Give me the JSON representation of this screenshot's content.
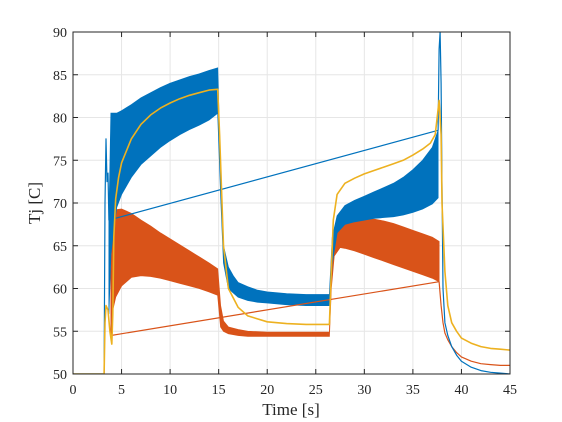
{
  "chart_data": {
    "type": "line",
    "title": "",
    "xlabel": "Time [s]",
    "ylabel": "Tj [C]",
    "xlim": [
      0,
      45
    ],
    "ylim": [
      50,
      90
    ],
    "xticks": [
      0,
      5,
      10,
      15,
      20,
      25,
      30,
      35,
      40,
      45
    ],
    "yticks": [
      50,
      55,
      60,
      65,
      70,
      75,
      80,
      85,
      90
    ],
    "grid": true,
    "colors": {
      "blue": "#0072BD",
      "orange": "#D95319",
      "yellow": "#EDB120",
      "axis": "#262626",
      "grid": "#e6e6e6"
    },
    "series": [
      {
        "color": "#EDB120",
        "style": "line",
        "x": [
          0,
          3.2,
          3.3,
          3.4,
          3.6,
          3.8,
          4.0,
          4.1,
          4.2,
          4.4,
          4.7,
          5.0,
          6.0,
          7.0,
          8.0,
          9.0,
          10.0,
          11.0,
          12.0,
          13.0,
          14.0,
          14.9,
          15.1,
          15.5,
          16.0,
          17.0,
          18.0,
          20.0,
          22.0,
          24.0,
          26.0,
          26.4,
          26.6,
          26.8,
          27.2,
          28.0,
          29.0,
          30.0,
          31.0,
          32.0,
          33.0,
          34.0,
          35.0,
          36.0,
          36.8,
          37.3,
          37.5,
          37.7,
          37.9,
          38.0,
          38.3,
          38.6,
          39.0,
          39.5,
          40.0,
          41.0,
          42.0,
          43.0,
          44.0,
          45.0
        ],
        "y": [
          50,
          50,
          56,
          58,
          57.5,
          55,
          53.5,
          57,
          66,
          70.5,
          73,
          74.7,
          77.5,
          79.2,
          80.3,
          81.1,
          81.7,
          82.2,
          82.6,
          82.9,
          83.2,
          83.3,
          78,
          65,
          60,
          57.8,
          56.8,
          56.1,
          55.9,
          55.8,
          55.8,
          55.8,
          62,
          68,
          71,
          72.3,
          72.9,
          73.4,
          73.8,
          74.2,
          74.6,
          75.0,
          75.6,
          76.3,
          77.0,
          78,
          80,
          82,
          78,
          70,
          62,
          58,
          56,
          55,
          54.2,
          53.6,
          53.2,
          53.0,
          52.9,
          52.8
        ]
      },
      {
        "color": "#0072BD",
        "style": "band",
        "x": [
          3.7,
          3.9,
          4.2,
          4.5,
          5.0,
          6.0,
          7.0,
          8.0,
          9.0,
          10.0,
          11.0,
          12.0,
          13.0,
          14.0,
          14.9,
          15.2,
          15.5,
          16.0,
          16.5,
          17.0,
          18.0,
          19.0,
          20.0,
          22.0,
          24.0,
          26.4,
          26.7,
          27.2,
          28.0,
          29.0,
          30.0,
          31.0,
          32.0,
          33.0,
          34.0,
          35.0,
          36.0,
          37.0,
          37.6
        ],
        "y_upper": [
          68,
          80.5,
          80.5,
          80.5,
          80.8,
          81.5,
          82.3,
          82.9,
          83.5,
          84.0,
          84.4,
          84.8,
          85.1,
          85.5,
          85.8,
          73,
          65,
          62.5,
          61.5,
          60.7,
          60.2,
          59.8,
          59.6,
          59.4,
          59.3,
          59.3,
          66,
          68.5,
          69.7,
          70.3,
          70.8,
          71.3,
          71.8,
          72.3,
          73.0,
          73.9,
          75.0,
          76.5,
          78.5
        ],
        "y_lower": [
          57,
          64,
          67,
          69.5,
          71,
          73,
          74.5,
          75.5,
          76.5,
          77.3,
          78.0,
          78.6,
          79.1,
          79.7,
          80.5,
          71,
          63,
          60,
          59.5,
          59.0,
          58.6,
          58.4,
          58.3,
          58.1,
          58.0,
          58.0,
          63,
          66.5,
          67.5,
          67.8,
          68.0,
          68.2,
          68.3,
          68.4,
          68.6,
          68.9,
          69.3,
          69.9,
          70.6
        ]
      },
      {
        "color": "#0072BD",
        "style": "line",
        "x": [
          0,
          3.2,
          3.3,
          3.4,
          3.5,
          3.6,
          3.7,
          37.6,
          37.7,
          37.8,
          37.9,
          38.0,
          38.1,
          38.3,
          38.6,
          39.0,
          39.5,
          40.0,
          41.0,
          42.0,
          43.0,
          44.0,
          45.0
        ],
        "y": [
          50,
          50,
          70,
          77.5,
          72.5,
          73.5,
          68,
          78.5,
          88,
          90,
          84,
          72,
          60,
          56,
          54.5,
          53.2,
          52.2,
          51.5,
          50.8,
          50.4,
          50.2,
          50.1,
          50.0
        ]
      },
      {
        "color": "#D95319",
        "style": "band",
        "x": [
          3.9,
          4.1,
          4.4,
          5.0,
          6.0,
          7.0,
          8.0,
          9.0,
          10.0,
          11.0,
          12.0,
          13.0,
          14.0,
          14.9,
          15.2,
          15.5,
          16.0,
          17.0,
          18.0,
          20.0,
          22.0,
          24.0,
          26.4,
          26.6,
          26.9,
          27.5,
          28.0,
          29.0,
          30.0,
          31.0,
          32.0,
          33.0,
          34.0,
          35.0,
          36.0,
          37.0,
          37.7
        ],
        "y_upper": [
          62,
          68.5,
          69.2,
          69.3,
          68.8,
          68.0,
          67.3,
          66.5,
          65.8,
          65.1,
          64.4,
          63.7,
          63.0,
          62.3,
          58,
          56.2,
          55.5,
          55.2,
          55.0,
          54.9,
          54.9,
          54.9,
          54.9,
          62,
          66.5,
          68.0,
          68.3,
          68.3,
          68.2,
          68.1,
          67.9,
          67.6,
          67.2,
          66.8,
          66.4,
          66.0,
          65.5
        ],
        "y_lower": [
          54.5,
          57.5,
          59.0,
          60.3,
          61.3,
          61.5,
          61.4,
          61.2,
          60.9,
          60.6,
          60.3,
          60.0,
          59.6,
          59.2,
          55.5,
          55.0,
          54.7,
          54.5,
          54.4,
          54.4,
          54.4,
          54.4,
          54.4,
          60,
          63.8,
          64.8,
          64.7,
          64.4,
          64.0,
          63.6,
          63.2,
          62.8,
          62.4,
          62.0,
          61.6,
          61.2,
          60.8
        ]
      },
      {
        "color": "#D95319",
        "style": "line",
        "x": [
          3.9,
          37.7,
          37.9,
          38.1,
          38.3,
          38.6,
          39.0,
          39.5,
          40.0,
          41.0,
          42.0,
          43.0,
          44.0,
          45.0
        ],
        "y": [
          54.5,
          60.8,
          58,
          56,
          54.8,
          54.0,
          53.2,
          52.5,
          52.0,
          51.5,
          51.2,
          51.1,
          51.0,
          51.0
        ]
      }
    ]
  }
}
